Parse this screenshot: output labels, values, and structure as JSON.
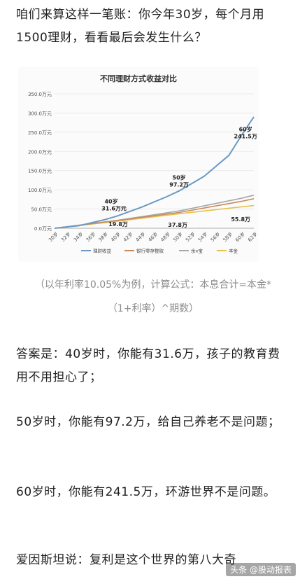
{
  "article": {
    "intro": "咱们来算这样一笔账：你今年30岁，每个月用1500理财，看看最后会发生什么？",
    "caption": "（以年利率10.05%为例，计算公式：本息合计=本金*（1+利率）^期数）",
    "answer_40": "答案是：40岁时，你能有31.6万，孩子的教育费用不用担心了；",
    "answer_50": "50岁时，你能有97.2万，给自己养老不是问题；",
    "answer_60": "60岁时，你能有241.5万，环游世界不是问题。",
    "einstein": "爱因斯坦说：复利是这个世界的第八大奇"
  },
  "watermark": "头条 @股动报表",
  "chart_data": {
    "type": "line",
    "title": "不同理财方式收益对比",
    "xlabel": "",
    "ylabel": "",
    "x_ticks": [
      "30岁",
      "32岁",
      "34岁",
      "36岁",
      "38岁",
      "40岁",
      "42岁",
      "44岁",
      "46岁",
      "48岁",
      "50岁",
      "52岁",
      "54岁",
      "56岁",
      "58岁",
      "60岁",
      "62岁"
    ],
    "x_range": [
      30,
      62
    ],
    "y_ticks": [
      "0.0万元",
      "50.0万元",
      "100.0万元",
      "150.0万元",
      "200.0万元",
      "250.0万元",
      "300.0万元",
      "350.0万元"
    ],
    "ylim": [
      0,
      350
    ],
    "grid": true,
    "legend_position": "bottom",
    "series": [
      {
        "name": "理财收益",
        "color": "#6a9ac4",
        "x": [
          30,
          34,
          38,
          40,
          44,
          48,
          50,
          54,
          58,
          60,
          62
        ],
        "y": [
          0,
          7,
          22,
          31.6,
          55,
          82,
          97.2,
          135,
          190,
          241.5,
          290
        ]
      },
      {
        "name": "银行零存整取",
        "color": "#c98a5a",
        "x": [
          30,
          40,
          50,
          60,
          62
        ],
        "y": [
          0,
          19.8,
          41,
          70,
          77
        ]
      },
      {
        "name": "余x宝",
        "color": "#a8a8a8",
        "x": [
          30,
          40,
          50,
          60,
          62
        ],
        "y": [
          0,
          20.5,
          45,
          78,
          86
        ]
      },
      {
        "name": "本金",
        "color": "#e8c14a",
        "x": [
          30,
          40,
          50,
          60,
          62
        ],
        "y": [
          0,
          18,
          37.8,
          55.8,
          59
        ]
      }
    ],
    "annotations": [
      {
        "age": "40岁",
        "value": "31.6万元"
      },
      {
        "age": "50岁",
        "value": "97.2万"
      },
      {
        "age": "60岁",
        "value": "241.5万"
      },
      {
        "value": "19.8万"
      },
      {
        "value": "37.8万"
      },
      {
        "value": "55.8万"
      }
    ]
  }
}
